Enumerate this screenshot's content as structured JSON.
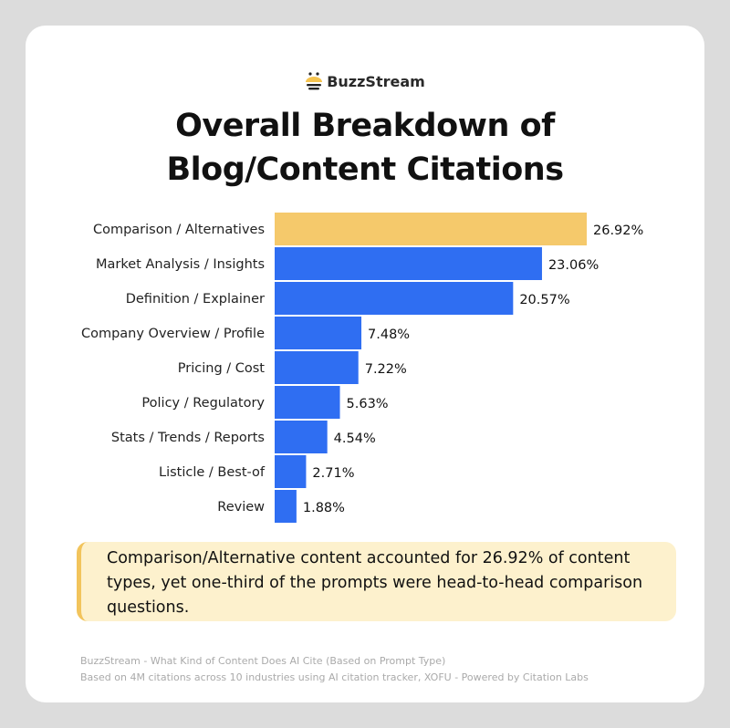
{
  "brand": "BuzzStream",
  "title_lines": [
    "Overall Breakdown of",
    "Blog/Content Citations"
  ],
  "chart_data": {
    "type": "bar",
    "orientation": "horizontal",
    "title": "Overall Breakdown of Blog/Content Citations",
    "categories": [
      "Comparison / Alternatives",
      "Market Analysis / Insights",
      "Definition / Explainer",
      "Company Overview / Profile",
      "Pricing / Cost",
      "Policy / Regulatory",
      "Stats / Trends / Reports",
      "Listicle / Best-of",
      "Review"
    ],
    "values": [
      26.92,
      23.06,
      20.57,
      7.48,
      7.22,
      5.63,
      4.54,
      2.71,
      1.88
    ],
    "labels": [
      "26.92%",
      "23.06%",
      "20.57%",
      "7.48%",
      "7.22%",
      "5.63%",
      "4.54%",
      "2.71%",
      "1.88%"
    ],
    "unit": "%",
    "grid": false,
    "colors": {
      "highlight": "#f5c96b",
      "default": "#2f6ef2"
    },
    "highlight_index": 0
  },
  "note": "Comparison/Alternative content accounted for 26.92% of content types, yet one-third of the prompts were head-to-head comparison questions.",
  "source_lines": [
    "BuzzStream - What Kind of Content Does AI Cite (Based on Prompt Type)",
    "Based on 4M citations across 10 industries using AI citation tracker, XOFU - Powered by Citation Labs"
  ]
}
